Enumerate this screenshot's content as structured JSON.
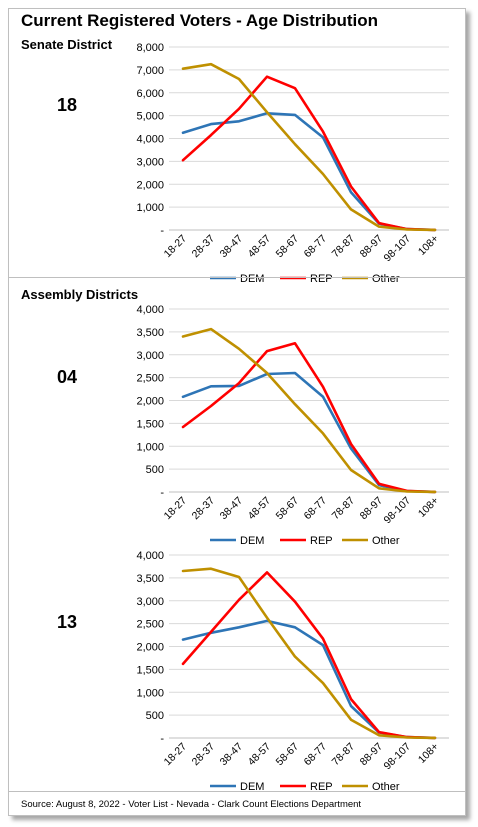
{
  "title": "Current Registered Voters - Age Distribution",
  "sections": {
    "senate_label": "Senate District",
    "assembly_label": "Assembly Districts"
  },
  "source": "Source: August 8, 2022 - Voter List - Nevada - Clark Count Elections Department",
  "colors": {
    "DEM": "#2e75b6",
    "REP": "#ff0000",
    "Other": "#bf9000"
  },
  "chart_data": [
    {
      "type": "line",
      "district": "18",
      "categories": [
        "18-27",
        "28-37",
        "38-47",
        "48-57",
        "58-67",
        "68-77",
        "78-87",
        "88-97",
        "98-107",
        "108+"
      ],
      "yticks": [
        "-",
        "1,000",
        "2,000",
        "3,000",
        "4,000",
        "5,000",
        "6,000",
        "7,000",
        "8,000"
      ],
      "ylim": [
        0,
        8000
      ],
      "series": [
        {
          "name": "DEM",
          "values": [
            4250,
            4630,
            4750,
            5100,
            5030,
            4050,
            1650,
            280,
            40,
            5
          ]
        },
        {
          "name": "REP",
          "values": [
            3050,
            4150,
            5300,
            6700,
            6200,
            4300,
            1900,
            300,
            40,
            5
          ]
        },
        {
          "name": "Other",
          "values": [
            7050,
            7250,
            6600,
            5150,
            3750,
            2450,
            900,
            150,
            20,
            3
          ]
        }
      ],
      "legend": "bottom"
    },
    {
      "type": "line",
      "district": "04",
      "categories": [
        "18-27",
        "28-37",
        "38-47",
        "48-57",
        "58-67",
        "68-77",
        "78-87",
        "88-97",
        "98-107",
        "108+"
      ],
      "yticks": [
        "-",
        "500",
        "1,000",
        "1,500",
        "2,000",
        "2,500",
        "3,000",
        "3,500",
        "4,000"
      ],
      "ylim": [
        0,
        4000
      ],
      "series": [
        {
          "name": "DEM",
          "values": [
            2080,
            2310,
            2320,
            2580,
            2600,
            2080,
            950,
            150,
            20,
            3
          ]
        },
        {
          "name": "REP",
          "values": [
            1420,
            1880,
            2380,
            3080,
            3250,
            2300,
            1050,
            180,
            25,
            3
          ]
        },
        {
          "name": "Other",
          "values": [
            3400,
            3560,
            3130,
            2600,
            1920,
            1280,
            480,
            80,
            10,
            2
          ]
        }
      ],
      "legend": "bottom"
    },
    {
      "type": "line",
      "district": "13",
      "categories": [
        "18-27",
        "28-37",
        "38-47",
        "48-57",
        "58-67",
        "68-77",
        "78-87",
        "88-97",
        "98-107",
        "108+"
      ],
      "yticks": [
        "-",
        "500",
        "1,000",
        "1,500",
        "2,000",
        "2,500",
        "3,000",
        "3,500",
        "4,000"
      ],
      "ylim": [
        0,
        4000
      ],
      "series": [
        {
          "name": "DEM",
          "values": [
            2150,
            2300,
            2420,
            2560,
            2420,
            2030,
            700,
            120,
            20,
            3
          ]
        },
        {
          "name": "REP",
          "values": [
            1620,
            2320,
            3020,
            3620,
            2980,
            2170,
            850,
            130,
            20,
            3
          ]
        },
        {
          "name": "Other",
          "values": [
            3650,
            3700,
            3520,
            2630,
            1780,
            1200,
            400,
            60,
            10,
            2
          ]
        }
      ],
      "legend": "bottom"
    }
  ]
}
